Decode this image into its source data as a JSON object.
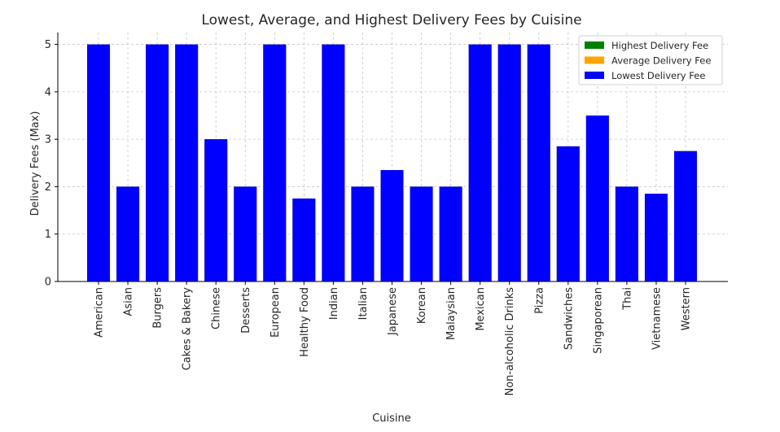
{
  "chart_data": {
    "type": "bar",
    "title": "Lowest, Average, and Highest Delivery Fees by Cuisine",
    "xlabel": "Cuisine",
    "ylabel": "Delivery Fees (Max)",
    "ylim": [
      0,
      5.25
    ],
    "yticks": [
      "0",
      "1",
      "2",
      "3",
      "4",
      "5"
    ],
    "grid": true,
    "legend_position": "top-right",
    "categories": [
      "American",
      "Asian",
      "Burgers",
      "Cakes & Bakery",
      "Chinese",
      "Desserts",
      "European",
      "Healthy Food",
      "Indian",
      "Italian",
      "Japanese",
      "Korean",
      "Malaysian",
      "Mexican",
      "Non-alcoholic Drinks",
      "Pizza",
      "Sandwiches",
      "Singaporean",
      "Thai",
      "Vietnamese",
      "Western"
    ],
    "series": [
      {
        "name": "Highest Delivery Fee",
        "color": "#008000",
        "values": [
          5,
          2,
          5,
          5,
          3,
          2,
          5,
          1.75,
          5,
          2,
          2.35,
          2,
          2,
          5,
          5,
          5,
          2.85,
          3.5,
          2,
          1.85,
          2.75
        ]
      },
      {
        "name": "Average Delivery Fee",
        "color": "#ffa500",
        "values": [
          5,
          2,
          5,
          5,
          3,
          2,
          5,
          1.75,
          5,
          2,
          2.35,
          2,
          2,
          5,
          5,
          5,
          2.85,
          3.5,
          2,
          1.85,
          2.75
        ]
      },
      {
        "name": "Lowest Delivery Fee",
        "color": "#0000ff",
        "values": [
          5,
          2,
          5,
          5,
          3,
          2,
          5,
          1.75,
          5,
          2,
          2.35,
          2,
          2,
          5,
          5,
          5,
          2.85,
          3.5,
          2,
          1.85,
          2.75
        ]
      }
    ]
  }
}
